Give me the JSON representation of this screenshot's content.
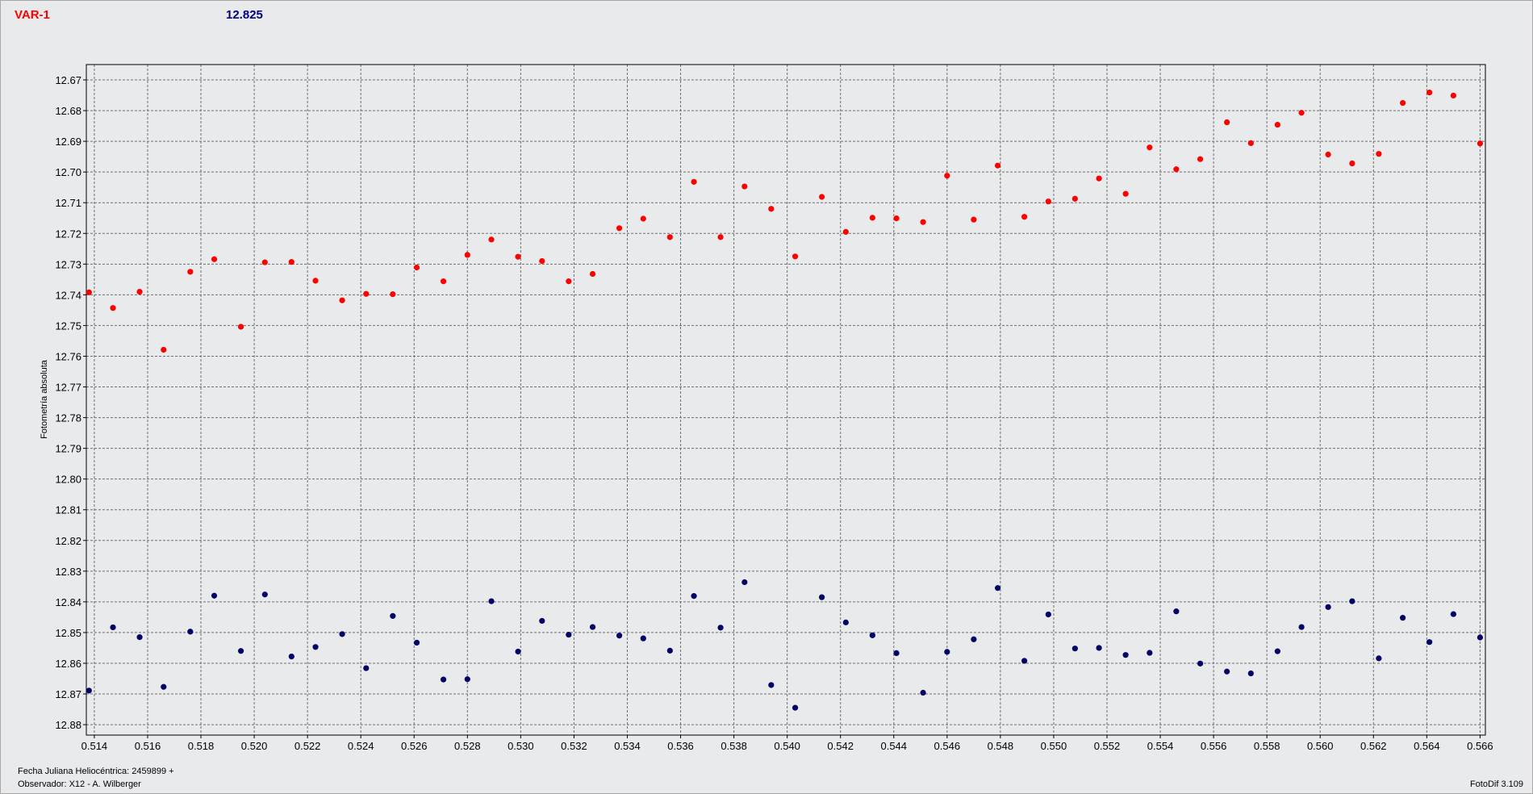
{
  "header": {
    "variable_label": "VAR-1",
    "value": "12.825"
  },
  "footer": {
    "jd_text": "Fecha Juliana Heliocéntrica: 2459899 +",
    "observer_text": "Observador: X12 - A. Wilberger",
    "version_text": "FotoDif 3.109"
  },
  "colors": {
    "series_var": "#ff0000",
    "series_comp": "#000066",
    "background": "#e9eaec"
  },
  "chart_data": {
    "type": "scatter",
    "ylabel": "Fotometría absoluta",
    "xlim": [
      0.5137,
      0.5662
    ],
    "ylim": [
      12.665,
      12.8834
    ],
    "y_inverted": true,
    "grid": true,
    "x_ticks": [
      "0.514",
      "0.516",
      "0.518",
      "0.520",
      "0.522",
      "0.524",
      "0.526",
      "0.528",
      "0.530",
      "0.532",
      "0.534",
      "0.536",
      "0.538",
      "0.540",
      "0.542",
      "0.544",
      "0.546",
      "0.548",
      "0.550",
      "0.552",
      "0.554",
      "0.556",
      "0.558",
      "0.560",
      "0.562",
      "0.564",
      "0.566"
    ],
    "y_ticks": [
      "12.67",
      "12.68",
      "12.69",
      "12.70",
      "12.71",
      "12.72",
      "12.73",
      "12.74",
      "12.75",
      "12.76",
      "12.77",
      "12.78",
      "12.79",
      "12.80",
      "12.81",
      "12.82",
      "12.83",
      "12.84",
      "12.85",
      "12.86",
      "12.87",
      "12.88"
    ],
    "series": [
      {
        "color": "#ff0000",
        "x": [
          0.5138,
          0.5147,
          0.5157,
          0.5166,
          0.5176,
          0.5185,
          0.5195,
          0.5204,
          0.5214,
          0.5223,
          0.5233,
          0.5242,
          0.5252,
          0.5261,
          0.5271,
          0.528,
          0.5289,
          0.5299,
          0.5308,
          0.5318,
          0.5327,
          0.5337,
          0.5346,
          0.5356,
          0.5365,
          0.5375,
          0.5384,
          0.5394,
          0.5403,
          0.5413,
          0.5422,
          0.5432,
          0.5441,
          0.5451,
          0.546,
          0.547,
          0.5479,
          0.5489,
          0.5498,
          0.5508,
          0.5517,
          0.5527,
          0.5536,
          0.5546,
          0.5555,
          0.5565,
          0.5574,
          0.5584,
          0.5593,
          0.5603,
          0.5612,
          0.5622,
          0.5631,
          0.5641,
          0.565,
          0.566
        ],
        "y": [
          12.7392,
          12.7443,
          12.739,
          12.7579,
          12.7325,
          12.7284,
          12.7504,
          12.7294,
          12.7293,
          12.7354,
          12.7418,
          12.7397,
          12.7398,
          12.7311,
          12.7356,
          12.727,
          12.722,
          12.7276,
          12.729,
          12.7356,
          12.7332,
          12.7183,
          12.7152,
          12.7212,
          12.7032,
          12.7212,
          12.7047,
          12.712,
          12.7275,
          12.7081,
          12.7195,
          12.7149,
          12.7151,
          12.7163,
          12.7012,
          12.7155,
          12.6979,
          12.7146,
          12.7096,
          12.7087,
          12.7021,
          12.7071,
          12.692,
          12.6991,
          12.6958,
          12.6838,
          12.6906,
          12.6846,
          12.6807,
          12.6943,
          12.6972,
          12.6941,
          12.6775,
          12.6741,
          12.6751,
          12.6907
        ]
      },
      {
        "color": "#000066",
        "x": [
          0.5138,
          0.5147,
          0.5157,
          0.5166,
          0.5176,
          0.5185,
          0.5195,
          0.5204,
          0.5214,
          0.5223,
          0.5233,
          0.5242,
          0.5252,
          0.5261,
          0.5271,
          0.528,
          0.5289,
          0.5299,
          0.5308,
          0.5318,
          0.5327,
          0.5337,
          0.5346,
          0.5356,
          0.5365,
          0.5375,
          0.5384,
          0.5394,
          0.5403,
          0.5413,
          0.5422,
          0.5432,
          0.5441,
          0.5451,
          0.546,
          0.547,
          0.5479,
          0.5489,
          0.5498,
          0.5508,
          0.5517,
          0.5527,
          0.5536,
          0.5546,
          0.5555,
          0.5565,
          0.5574,
          0.5584,
          0.5593,
          0.5603,
          0.5612,
          0.5622,
          0.5631,
          0.5641,
          0.565,
          0.566
        ],
        "y": [
          12.8689,
          12.8483,
          12.8515,
          12.8677,
          12.8497,
          12.838,
          12.856,
          12.8376,
          12.8578,
          12.8547,
          12.8505,
          12.8616,
          12.8446,
          12.8533,
          12.8653,
          12.8652,
          12.8398,
          12.8562,
          12.8462,
          12.8507,
          12.8482,
          12.851,
          12.8519,
          12.8559,
          12.8381,
          12.8484,
          12.8336,
          12.8671,
          12.8745,
          12.8385,
          12.8467,
          12.8509,
          12.8567,
          12.8696,
          12.8563,
          12.8522,
          12.8355,
          12.8592,
          12.8441,
          12.8552,
          12.855,
          12.8573,
          12.8566,
          12.8431,
          12.8601,
          12.8627,
          12.8633,
          12.8561,
          12.8482,
          12.8417,
          12.8398,
          12.8584,
          12.8452,
          12.8531,
          12.844,
          12.8516
        ]
      }
    ]
  }
}
